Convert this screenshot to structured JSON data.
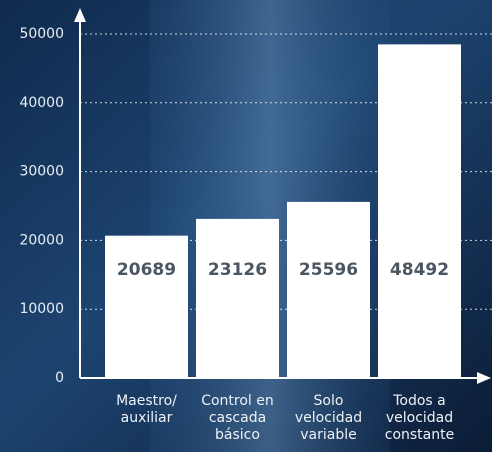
{
  "chart_data": {
    "type": "bar",
    "categories": [
      [
        "Maestro/",
        "auxiliar"
      ],
      [
        "Control en",
        "cascada",
        "básico"
      ],
      [
        "Solo",
        "velocidad",
        "variable"
      ],
      [
        "Todos a",
        "velocidad",
        "constante"
      ]
    ],
    "values": [
      20689,
      23126,
      25596,
      48492
    ],
    "color": "#ffffff",
    "ylim": [
      0,
      50000
    ],
    "yticks": [
      0,
      10000,
      20000,
      30000,
      40000,
      50000
    ],
    "grid": true
  }
}
